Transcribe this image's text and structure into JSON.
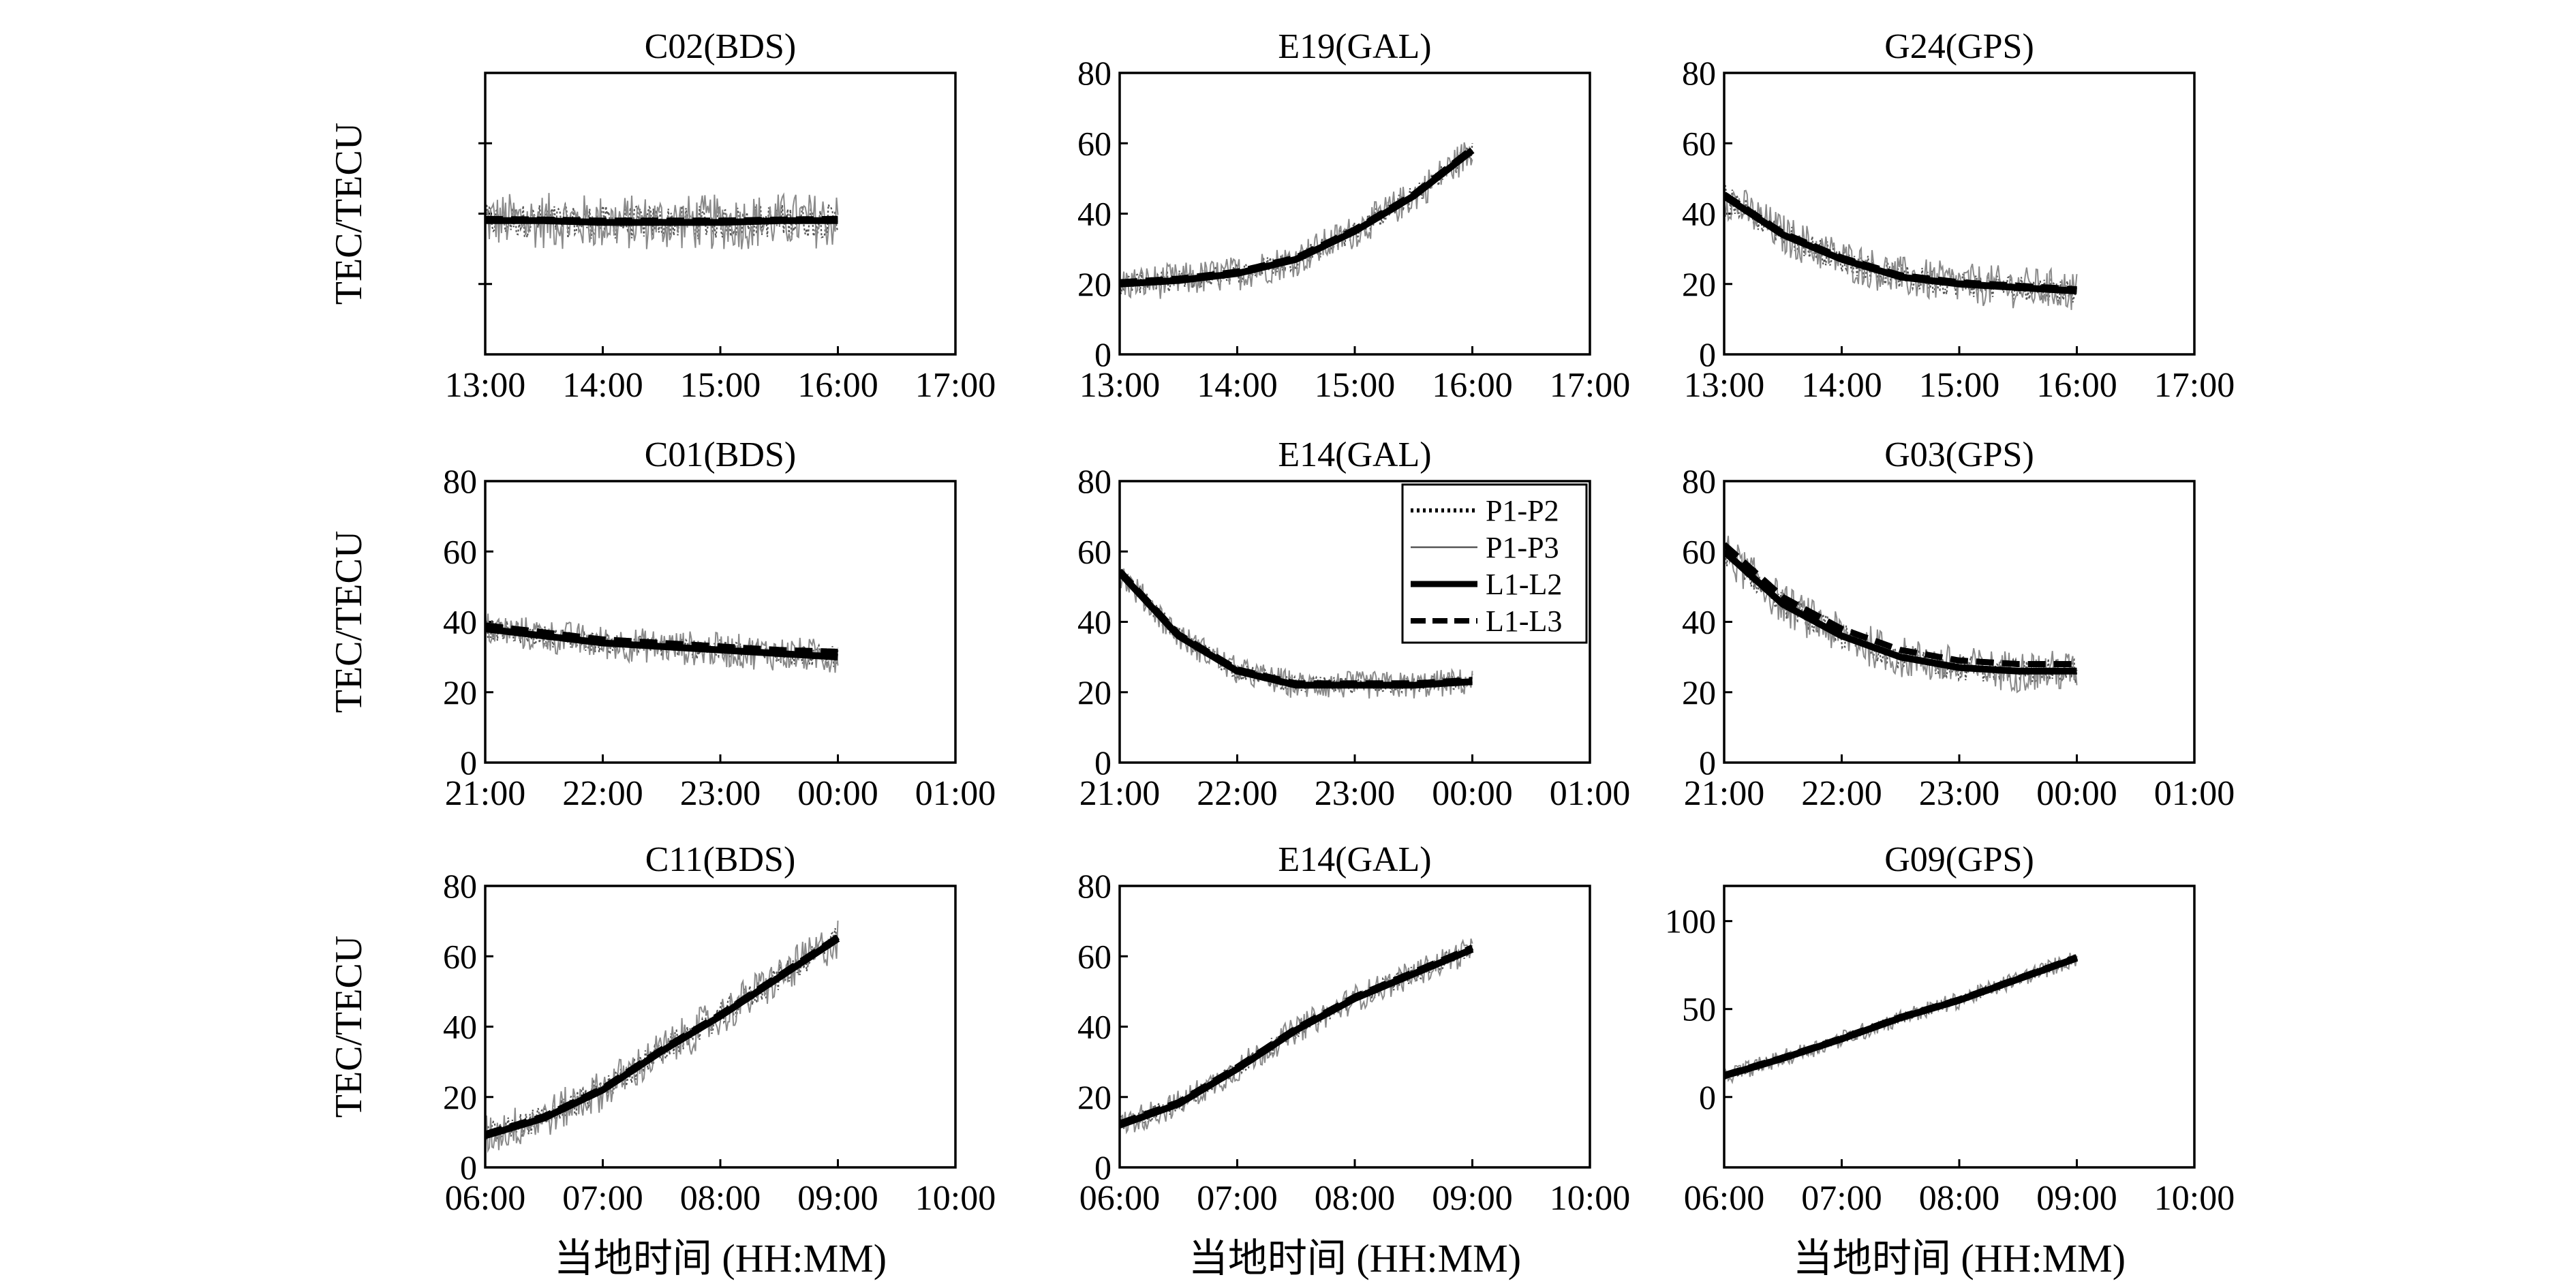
{
  "chart_data": {
    "type": "line",
    "grid_rows": 3,
    "grid_cols": 3,
    "y_axis_label": "TEC/TECU",
    "x_axis_label": "当地时间 (HH:MM)",
    "legend": {
      "placement": "top-right of panel E14(GAL) (row 2)",
      "entries": [
        {
          "label": "P1-P2",
          "style": "dotted"
        },
        {
          "label": "P1-P3",
          "style": "thin-noisy"
        },
        {
          "label": "L1-L2",
          "style": "solid"
        },
        {
          "label": "L1-L3",
          "style": "dashed"
        }
      ]
    },
    "rows": [
      {
        "x_ticks": [
          "13:00",
          "14:00",
          "15:00",
          "16:00",
          "17:00"
        ],
        "panels": [
          {
            "title": "C02(BDS)",
            "ylim": [
              0,
              80
            ],
            "yticks": [],
            "show_ylabel": true,
            "series": {
              "L1-L2": [
                38,
                38,
                37.5,
                37.5,
                37.5,
                38,
                38
              ],
              "L1-L3": [
                38.5,
                38.3,
                38,
                38,
                38,
                38.3,
                38.5
              ],
              "noise_amp": 8
            }
          },
          {
            "title": "E19(GAL)",
            "ylim": [
              0,
              80
            ],
            "yticks": [
              0,
              20,
              40,
              60,
              80
            ],
            "show_ylabel": false,
            "series": {
              "L1-L2": [
                20,
                21,
                23,
                27,
                35,
                45,
                58
              ],
              "L1-L3": [
                20.5,
                21.5,
                23.5,
                27.5,
                35.5,
                45.5,
                58.5
              ],
              "noise_amp": 5
            }
          },
          {
            "title": "G24(GPS)",
            "ylim": [
              0,
              80
            ],
            "yticks": [
              0,
              20,
              40,
              60,
              80
            ],
            "show_ylabel": false,
            "series": {
              "L1-L2": [
                45,
                34,
                27,
                22,
                20,
                19,
                18
              ],
              "L1-L3": [
                45.5,
                34.5,
                27.5,
                22.5,
                20.5,
                19.5,
                18.5
              ],
              "noise_amp": 6
            }
          }
        ]
      },
      {
        "x_ticks": [
          "21:00",
          "22:00",
          "23:00",
          "00:00",
          "01:00"
        ],
        "panels": [
          {
            "title": "C01(BDS)",
            "ylim": [
              0,
              80
            ],
            "yticks": [
              0,
              20,
              40,
              60,
              80
            ],
            "show_ylabel": true,
            "series": {
              "L1-L2": [
                38,
                36,
                34,
                33,
                32,
                31,
                30
              ],
              "L1-L3": [
                39,
                37,
                35,
                34,
                33,
                32,
                31.5
              ],
              "noise_amp": 5
            }
          },
          {
            "title": "E14(GAL)",
            "ylim": [
              0,
              80
            ],
            "yticks": [
              0,
              20,
              40,
              60,
              80
            ],
            "show_ylabel": false,
            "has_legend": true,
            "series": {
              "L1-L2": [
                54,
                36,
                26,
                22,
                22,
                22,
                23
              ],
              "L1-L3": [
                54.5,
                36.5,
                26.5,
                22.5,
                22.5,
                22.5,
                23.5
              ],
              "noise_amp": 4
            }
          },
          {
            "title": "G03(GPS)",
            "ylim": [
              0,
              80
            ],
            "yticks": [
              0,
              20,
              40,
              60,
              80
            ],
            "show_ylabel": false,
            "series": {
              "L1-L2": [
                60,
                45,
                36,
                30,
                27,
                26,
                26
              ],
              "L1-L3": [
                62,
                47,
                38,
                32,
                29,
                28,
                28
              ],
              "noise_amp": 6
            }
          }
        ]
      },
      {
        "x_ticks": [
          "06:00",
          "07:00",
          "08:00",
          "09:00",
          "10:00"
        ],
        "panels": [
          {
            "title": "C11(BDS)",
            "ylim": [
              0,
              80
            ],
            "yticks": [
              0,
              20,
              40,
              60,
              80
            ],
            "show_ylabel": true,
            "series": {
              "L1-L2": [
                9,
                14,
                22,
                33,
                43,
                54,
                65
              ],
              "L1-L3": [
                9.5,
                14.5,
                22.5,
                33.5,
                43.5,
                54.5,
                65.5
              ],
              "noise_amp": 6
            }
          },
          {
            "title": "E14(GAL)",
            "ylim": [
              0,
              80
            ],
            "yticks": [
              0,
              20,
              40,
              60,
              80
            ],
            "show_ylabel": false,
            "series": {
              "L1-L2": [
                12,
                18,
                28,
                39,
                48,
                55,
                62
              ],
              "L1-L3": [
                12.5,
                18.5,
                28.5,
                39.5,
                48.5,
                55.5,
                62.5
              ],
              "noise_amp": 4
            }
          },
          {
            "title": "G09(GPS)",
            "ylim": [
              -40,
              120
            ],
            "yticks": [
              0,
              50,
              100
            ],
            "show_ylabel": false,
            "series": {
              "L1-L2": [
                12,
                22,
                33,
                45,
                55,
                67,
                79
              ],
              "L1-L3": [
                12.5,
                22.5,
                33.5,
                45.5,
                55.5,
                67.5,
                79.5
              ],
              "noise_amp": 5
            }
          }
        ]
      }
    ]
  }
}
